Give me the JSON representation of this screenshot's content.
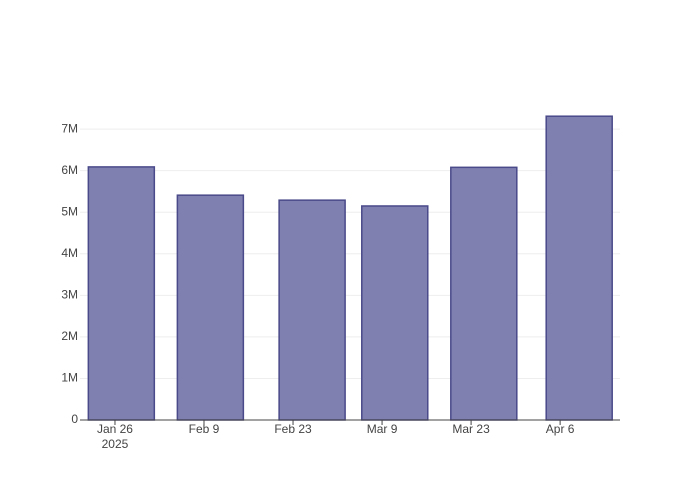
{
  "chart_data": {
    "type": "bar",
    "x": [
      "2025-01-27",
      "2025-02-10",
      "2025-02-26",
      "2025-03-11",
      "2025-03-25",
      "2025-04-09"
    ],
    "values": [
      6090000,
      5410000,
      5290000,
      5150000,
      6080000,
      7310000
    ],
    "color": "#7f7fb0",
    "line_color": "#4a4a8a",
    "xlim": [
      "2025-01-20T12:00",
      "2025-04-15T10:00"
    ],
    "xticks": [
      {
        "value": "2025-01-26",
        "label": "Jan 26\n2025"
      },
      {
        "value": "2025-02-09",
        "label": "Feb 9"
      },
      {
        "value": "2025-02-23",
        "label": "Feb 23"
      },
      {
        "value": "2025-03-09",
        "label": "Mar 9"
      },
      {
        "value": "2025-03-23",
        "label": "Mar 23"
      },
      {
        "value": "2025-04-06",
        "label": "Apr 6"
      }
    ],
    "ylim": [
      0,
      7700000
    ],
    "yticks": [
      0,
      {
        "value": 1000000,
        "label": "1M"
      },
      {
        "value": 2000000,
        "label": "2M"
      },
      {
        "value": 3000000,
        "label": "3M"
      },
      {
        "value": 4000000,
        "label": "4M"
      },
      {
        "value": 5000000,
        "label": "5M"
      },
      {
        "value": 6000000,
        "label": "6M"
      },
      {
        "value": 7000000,
        "label": "7M"
      }
    ],
    "grid": true
  }
}
